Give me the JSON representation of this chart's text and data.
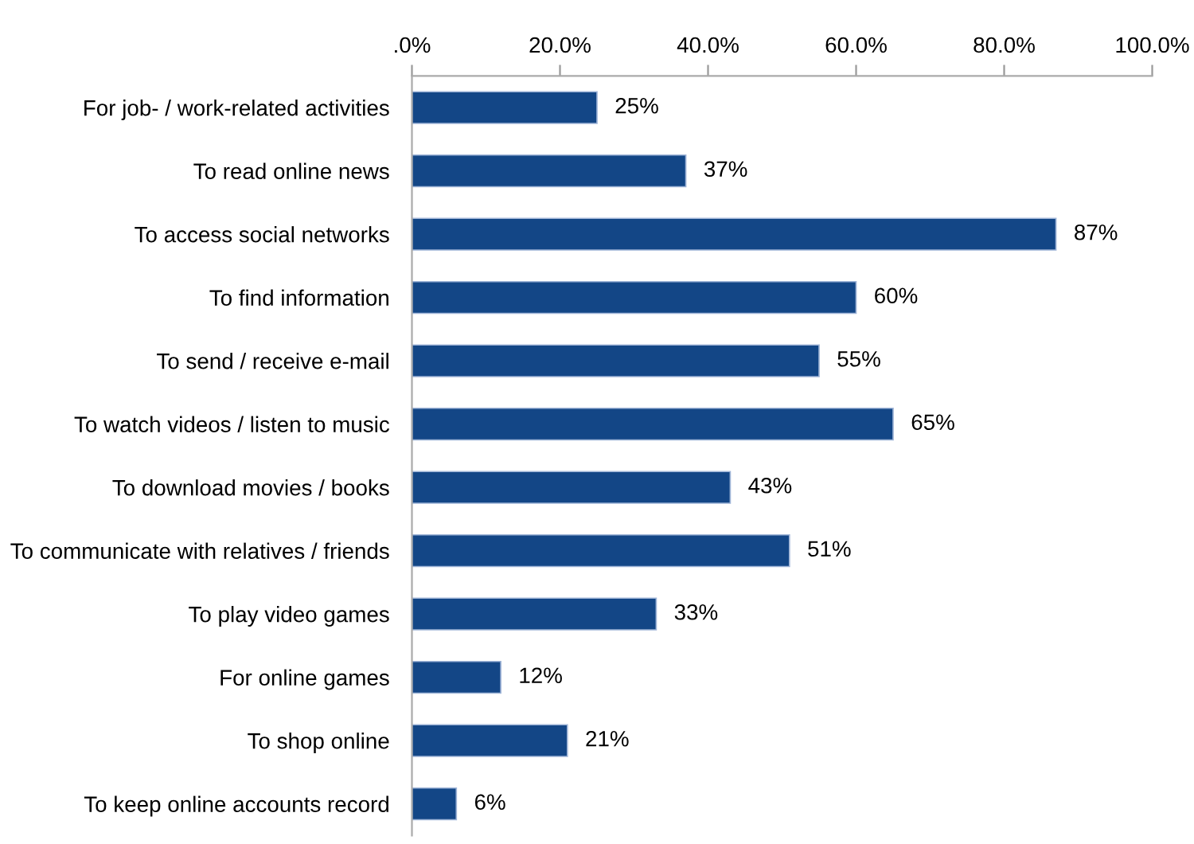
{
  "chart_data": {
    "type": "bar",
    "orientation": "horizontal",
    "categories": [
      "For job- / work-related activities",
      "To read online news",
      "To access social networks",
      "To find information",
      "To send / receive e-mail",
      "To watch videos / listen to music",
      "To download movies / books",
      "To communicate with relatives / friends",
      "To play video games",
      "For online games",
      "To shop online",
      "To keep online accounts record"
    ],
    "values": [
      25,
      37,
      87,
      60,
      55,
      65,
      43,
      51,
      33,
      12,
      21,
      6
    ],
    "value_labels": [
      "25%",
      "37%",
      "87%",
      "60%",
      "55%",
      "65%",
      "43%",
      "51%",
      "33%",
      "12%",
      "21%",
      "6%"
    ],
    "color": "#134686",
    "xlim": [
      0,
      100
    ],
    "xticks": [
      {
        "value": 0,
        "label": ".0%"
      },
      {
        "value": 20,
        "label": "20.0%"
      },
      {
        "value": 40,
        "label": "40.0%"
      },
      {
        "value": 60,
        "label": "60.0%"
      },
      {
        "value": 80,
        "label": "80.0%"
      },
      {
        "value": 100,
        "label": "100.0%"
      }
    ],
    "grid": false,
    "legend": false
  }
}
